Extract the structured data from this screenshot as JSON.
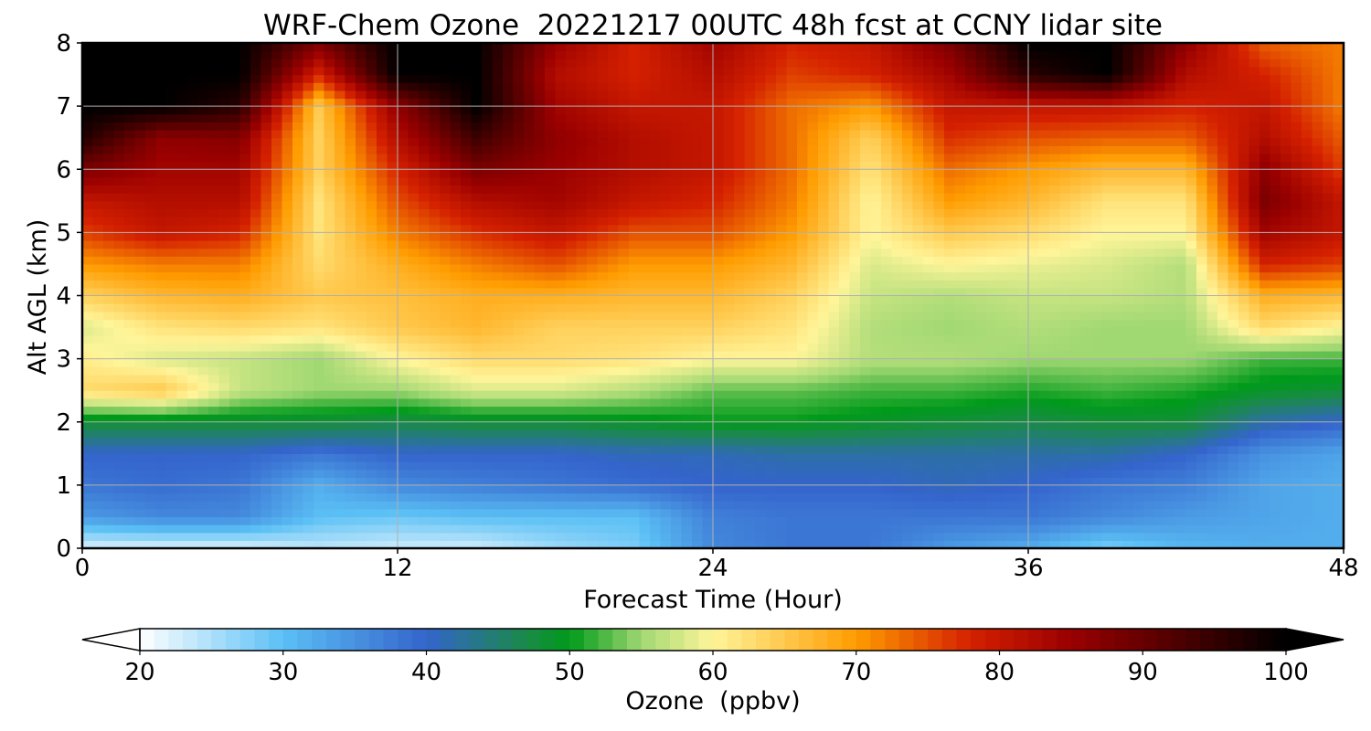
{
  "chart_data": {
    "type": "heatmap",
    "title": "WRF-Chem Ozone  20221217 00UTC 48h fcst at CCNY lidar site",
    "xlabel": "Forecast Time (Hour)",
    "ylabel": "Alt AGL (km)",
    "xlim": [
      0,
      48
    ],
    "ylim": [
      0,
      8
    ],
    "x_ticks": [
      0,
      12,
      24,
      36,
      48
    ],
    "y_ticks": [
      0,
      1,
      2,
      3,
      4,
      5,
      6,
      7,
      8
    ],
    "grid": true,
    "x": [
      0,
      3,
      6,
      9,
      12,
      15,
      18,
      21,
      24,
      27,
      30,
      33,
      36,
      39,
      42,
      45,
      48
    ],
    "y": [
      0,
      0.5,
      1,
      1.5,
      2,
      2.5,
      3,
      3.5,
      4,
      4.5,
      5,
      5.5,
      6,
      6.5,
      7,
      7.5,
      8
    ],
    "z_units": "ppbv",
    "z": [
      [
        22,
        22,
        22,
        24,
        23,
        23,
        26,
        28,
        36,
        38,
        38,
        34,
        32,
        28,
        31,
        32,
        32
      ],
      [
        34,
        36,
        36,
        30,
        29,
        30,
        30,
        30,
        37,
        38,
        38,
        38,
        38,
        36,
        34,
        33,
        32
      ],
      [
        38,
        39,
        38,
        32,
        36,
        37,
        38,
        39,
        40,
        40,
        40,
        41,
        40,
        38,
        37,
        33,
        32
      ],
      [
        40,
        40,
        40,
        38,
        40,
        40,
        40,
        41,
        41,
        42,
        42,
        42,
        42,
        42,
        40,
        35,
        33
      ],
      [
        48,
        48,
        48,
        48,
        47,
        48,
        48,
        49,
        50,
        50,
        49,
        48,
        47,
        48,
        48,
        42,
        40
      ],
      [
        63,
        65,
        57,
        55,
        55,
        58,
        58,
        56,
        53,
        53,
        52,
        52,
        51,
        52,
        51,
        49,
        48
      ],
      [
        61,
        58,
        57,
        55,
        60,
        63,
        63,
        62,
        60,
        60,
        56,
        56,
        55,
        55,
        55,
        52,
        52
      ],
      [
        58,
        62,
        63,
        62,
        65,
        67,
        64,
        64,
        64,
        62,
        56,
        55,
        56,
        55,
        55,
        63,
        60
      ],
      [
        64,
        67,
        68,
        65,
        66,
        68,
        68,
        67,
        67,
        64,
        57,
        56,
        57,
        57,
        56,
        68,
        67
      ],
      [
        70,
        72,
        72,
        63,
        68,
        72,
        75,
        70,
        70,
        67,
        58,
        60,
        59,
        58,
        56,
        78,
        76
      ],
      [
        76,
        80,
        78,
        62,
        72,
        77,
        80,
        75,
        75,
        70,
        60,
        65,
        63,
        60,
        60,
        84,
        80
      ],
      [
        80,
        82,
        82,
        62,
        75,
        82,
        84,
        80,
        78,
        72,
        60,
        70,
        67,
        62,
        62,
        88,
        80
      ],
      [
        88,
        84,
        84,
        64,
        78,
        88,
        85,
        82,
        80,
        73,
        62,
        73,
        70,
        67,
        67,
        86,
        76
      ],
      [
        97,
        86,
        87,
        64,
        82,
        94,
        86,
        82,
        80,
        73,
        64,
        77,
        75,
        74,
        74,
        82,
        74
      ],
      [
        100,
        100,
        96,
        65,
        86,
        100,
        84,
        80,
        80,
        73,
        70,
        80,
        80,
        80,
        78,
        80,
        72
      ],
      [
        100,
        100,
        100,
        78,
        100,
        100,
        82,
        78,
        82,
        76,
        78,
        84,
        96,
        100,
        82,
        78,
        72
      ],
      [
        100,
        100,
        100,
        88,
        100,
        100,
        85,
        78,
        84,
        78,
        80,
        88,
        100,
        100,
        86,
        74,
        72
      ]
    ],
    "colorbar": {
      "label": "Ozone  (ppbv)",
      "min": 20,
      "max": 100,
      "ticks": [
        20,
        30,
        40,
        50,
        60,
        70,
        80,
        90,
        100
      ],
      "extend": "both",
      "colors": [
        "#ffffff",
        "#5bc0f5",
        "#3464cc",
        "#1a8a48",
        "#009a1a",
        "#a0d872",
        "#fff59a",
        "#ff9c00",
        "#d42000",
        "#9a0000",
        "#000000"
      ],
      "color_stops": [
        20,
        30,
        40,
        47,
        50,
        55,
        60,
        70,
        78,
        85,
        100
      ]
    }
  }
}
